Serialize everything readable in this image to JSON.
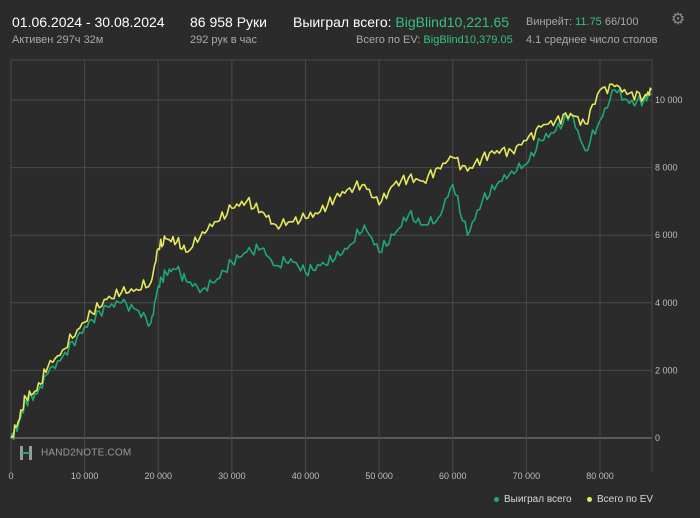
{
  "header": {
    "date_range": "01.06.2024 - 30.08.2024",
    "active": "Активен 297ч 32м",
    "hands": "86 958 Руки",
    "hands_per_hour": "292 рук в час",
    "won_total_label": "Выиграл всего:",
    "won_total_value": "BigBlind10,221.65",
    "ev_total_label": "Всего по EV:",
    "ev_total_value": "BigBlind10,379.05",
    "winrate_label": "Винрейт:",
    "winrate_value": "11.75",
    "winrate_suffix": "66/100",
    "avg_tables": "4.1 среднее число столов"
  },
  "settings_icon": "gear-icon",
  "watermark": "HAND2NOTE.COM",
  "colors": {
    "background": "#2b2b2b",
    "grid": "#4a4a4a",
    "won": "#1fa872",
    "ev": "#e6e85a",
    "accent_green": "#33c27f"
  },
  "chart_data": {
    "type": "line",
    "x_ticks": [
      "0",
      "10 000",
      "20 000",
      "30 000",
      "40 000",
      "50 000",
      "60 000",
      "70 000",
      "80 000"
    ],
    "y_ticks": [
      "0",
      "2 000",
      "4 000",
      "6 000",
      "8 000",
      "10 000"
    ],
    "xlim": [
      0,
      87000
    ],
    "ylim": [
      -200,
      11000
    ],
    "legend": [
      "Выиграл всего",
      "Всего по EV"
    ],
    "legend_position": "bottom-right",
    "grid": true,
    "series": [
      {
        "name": "Выиграл всего",
        "color": "#1fa872",
        "x": [
          0,
          1000,
          2000,
          3500,
          5000,
          7000,
          9000,
          11000,
          13000,
          15000,
          17000,
          19000,
          20000,
          21000,
          22500,
          24000,
          26000,
          28000,
          30000,
          32000,
          34000,
          36000,
          38000,
          40000,
          42000,
          44000,
          46000,
          48000,
          50000,
          52000,
          54000,
          56000,
          58000,
          60000,
          62000,
          64000,
          66000,
          68000,
          70000,
          72000,
          74000,
          76000,
          78000,
          80000,
          82000,
          84000,
          86000,
          87000
        ],
        "y": [
          0,
          400,
          1100,
          1300,
          1900,
          2400,
          3000,
          3500,
          3900,
          4000,
          3800,
          3400,
          4500,
          4900,
          5000,
          4600,
          4400,
          4700,
          5200,
          5500,
          5600,
          5100,
          5300,
          4900,
          5100,
          5300,
          5700,
          6300,
          5500,
          6000,
          6600,
          6300,
          6500,
          7500,
          6000,
          7000,
          7500,
          7900,
          8100,
          8800,
          9100,
          9600,
          8500,
          9400,
          10300,
          9900,
          10000,
          10200
        ]
      },
      {
        "name": "Всего по EV",
        "color": "#e6e85a",
        "x": [
          0,
          1000,
          2000,
          3500,
          5000,
          7000,
          9000,
          11000,
          13000,
          15000,
          17000,
          19000,
          20000,
          21000,
          22500,
          24000,
          26000,
          28000,
          30000,
          32000,
          34000,
          36000,
          38000,
          40000,
          42000,
          44000,
          46000,
          48000,
          50000,
          52000,
          54000,
          56000,
          58000,
          60000,
          62000,
          64000,
          66000,
          68000,
          70000,
          72000,
          74000,
          76000,
          78000,
          80000,
          82000,
          84000,
          86000,
          87000
        ],
        "y": [
          0,
          500,
          1200,
          1400,
          2100,
          2600,
          3200,
          3700,
          4100,
          4300,
          4400,
          4600,
          5600,
          5900,
          5800,
          5500,
          6100,
          6400,
          6800,
          7000,
          6700,
          6300,
          6400,
          6500,
          6700,
          7100,
          7400,
          7500,
          6900,
          7500,
          7700,
          7600,
          8000,
          8300,
          7900,
          8300,
          8500,
          8500,
          8800,
          9200,
          9400,
          9600,
          9300,
          10300,
          10400,
          10200,
          10100,
          10300
        ]
      }
    ]
  }
}
